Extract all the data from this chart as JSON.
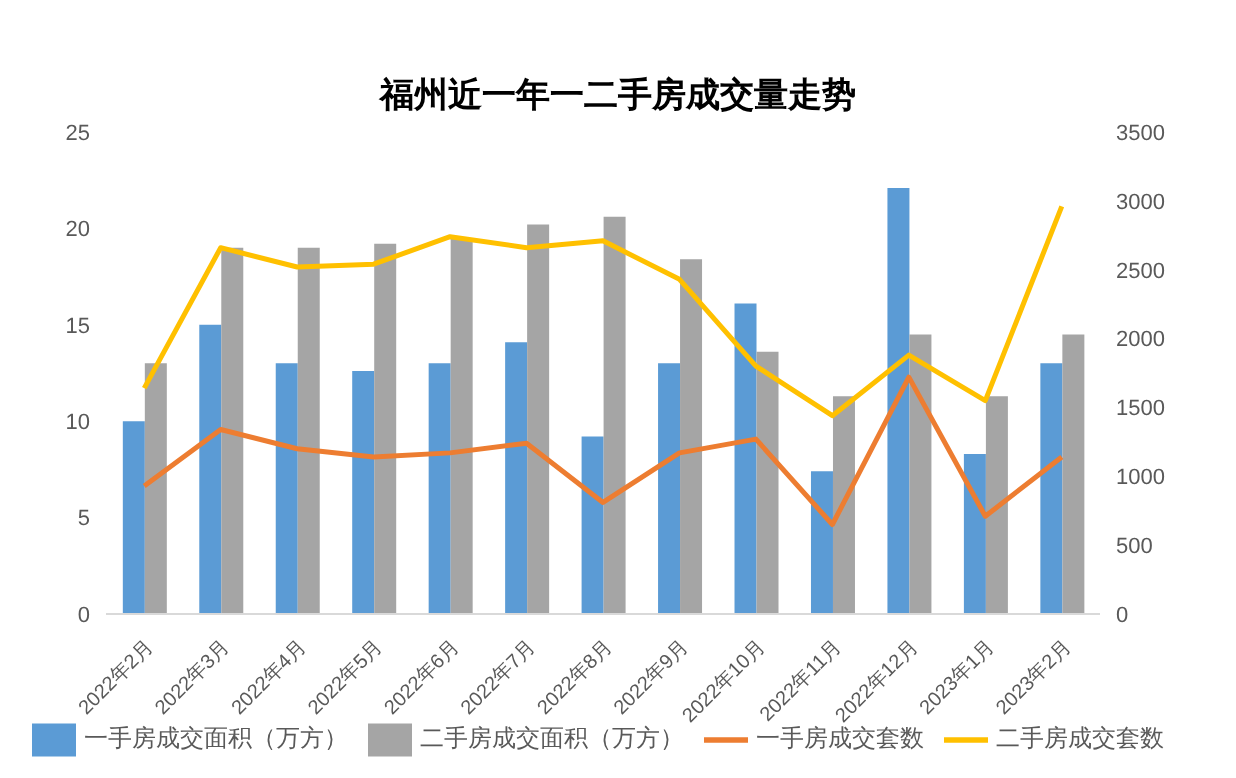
{
  "chart_data": {
    "type": "bar",
    "title": "福州近一年一二手房成交量走势",
    "categories": [
      "2022年2月",
      "2022年3月",
      "2022年4月",
      "2022年5月",
      "2022年6月",
      "2022年7月",
      "2022年8月",
      "2022年9月",
      "2022年10月",
      "2022年11月",
      "2022年12月",
      "2023年1月",
      "2023年2月"
    ],
    "series": [
      {
        "name": "一手房成交面积（万方）",
        "color": "#5b9bd5",
        "values": [
          10,
          15,
          13,
          12.6,
          13,
          14.1,
          9.2,
          13,
          16.1,
          7.4,
          22.1,
          8.3,
          13
        ]
      },
      {
        "name": "二手房成交面积（万方）",
        "color": "#a5a5a5",
        "values": [
          13,
          19,
          19,
          19.2,
          19.5,
          20.2,
          20.6,
          18.4,
          13.6,
          11.3,
          14.5,
          11.3,
          14.5
        ]
      },
      {
        "name": "一手房成交套数",
        "type": "line",
        "axis": "y2",
        "color": "#ed7d31",
        "values": [
          930,
          1340,
          1200,
          1140,
          1170,
          1240,
          810,
          1170,
          1270,
          650,
          1720,
          710,
          1140
        ]
      },
      {
        "name": "二手房成交套数",
        "type": "line",
        "axis": "y2",
        "color": "#ffc000",
        "values": [
          1640,
          2660,
          2520,
          2540,
          2740,
          2660,
          2710,
          2430,
          1800,
          1440,
          1880,
          1550,
          2960
        ]
      }
    ],
    "ylim": [
      0,
      25
    ],
    "yticks": [
      0,
      5,
      10,
      15,
      20,
      25
    ],
    "y2lim": [
      0,
      3500
    ],
    "y2ticks": [
      0,
      500,
      1000,
      1500,
      2000,
      2500,
      3000,
      3500
    ],
    "grid": false,
    "legend": "bottom",
    "marker": "none",
    "line_style": "solid"
  }
}
